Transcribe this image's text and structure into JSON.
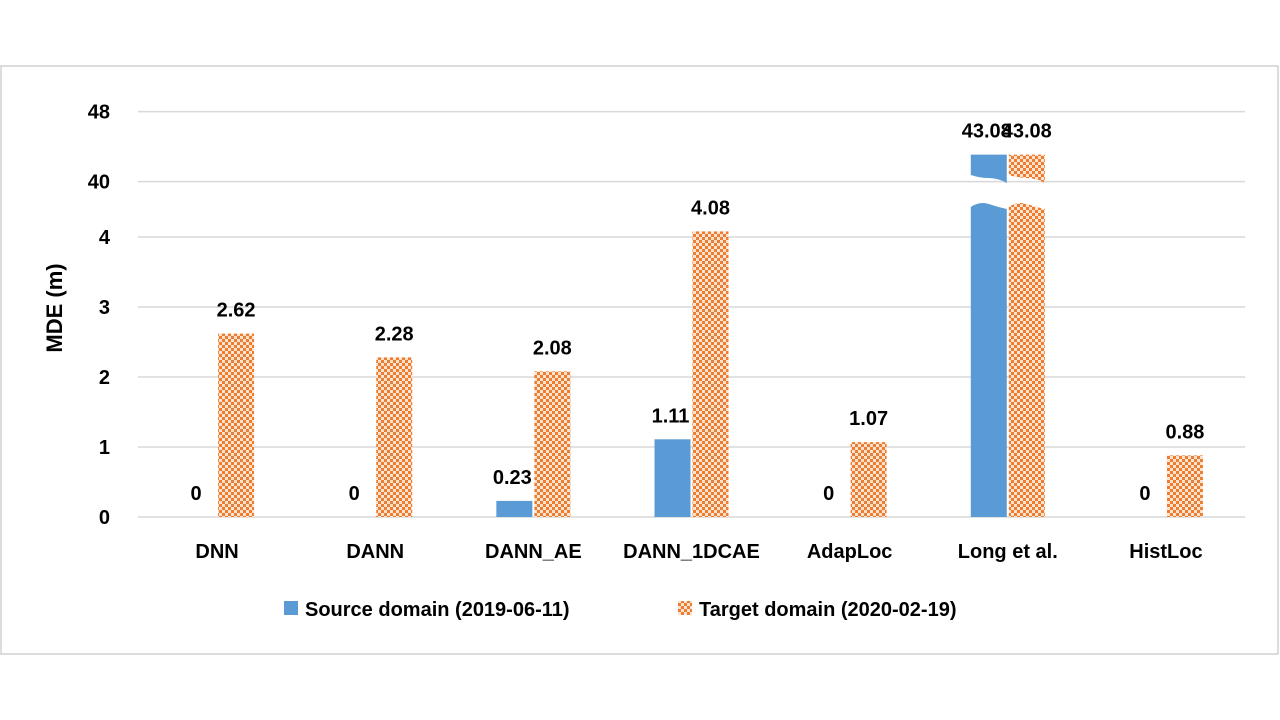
{
  "chart_data": {
    "type": "bar",
    "categories": [
      "DNN",
      "DANN",
      "DANN_AE",
      "DANN_1DCAE",
      "AdapLoc",
      "Long et al.",
      "HistLoc"
    ],
    "series": [
      {
        "name": "Source domain (2019-06-11)",
        "values": [
          0,
          0,
          0.23,
          1.11,
          0,
          43.08,
          0
        ],
        "color": "#5b9bd5",
        "pattern": "solid"
      },
      {
        "name": "Target domain (2020-02-19)",
        "values": [
          2.62,
          2.28,
          2.08,
          4.08,
          1.07,
          43.08,
          0.88
        ],
        "color": "#ed7d31",
        "pattern": "checkerboard"
      }
    ],
    "ylabel": "MDE (m)",
    "y_ticks": [
      "0",
      "1",
      "2",
      "3",
      "4",
      "40",
      "48"
    ],
    "y_axis": "broken",
    "y_segments": [
      {
        "range": [
          0,
          4.5
        ],
        "ticks": [
          0,
          1,
          2,
          3,
          4
        ]
      },
      {
        "range": [
          37.5,
          48
        ],
        "ticks": [
          40,
          48
        ]
      }
    ],
    "data_labels": [
      [
        "0",
        "0",
        "0.23",
        "1.11",
        "0",
        "43.08",
        "0"
      ],
      [
        "2.62",
        "2.28",
        "2.08",
        "4.08",
        "1.07",
        "43.08",
        "0.88"
      ]
    ],
    "grid": true,
    "legend_position": "bottom"
  }
}
